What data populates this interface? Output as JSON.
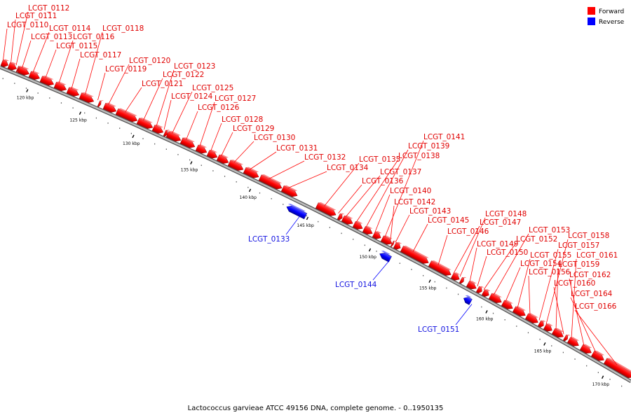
{
  "caption": "Lactococcus garvieae ATCC 49156 DNA, complete genome. - 0..1950135",
  "legend": [
    {
      "label": "Forward",
      "color": "#ff0000"
    },
    {
      "label": "Reverse",
      "color": "#0000ff"
    }
  ],
  "colors": {
    "forward": "#ff0000",
    "reverse": "#0000ff",
    "forward_label": "#e00000",
    "reverse_label": "#1010e0",
    "backbone": "#8c8c8c"
  },
  "ticks": [
    "120 kbp",
    "125 kbp",
    "130 kbp",
    "135 kbp",
    "140 kbp",
    "145 kbp",
    "150 kbp",
    "155 kbp",
    "160 kbp",
    "165 kbp",
    "170 kbp"
  ],
  "genes": [
    {
      "id": "LCGT_0110",
      "strand": "forward"
    },
    {
      "id": "LCGT_0111",
      "strand": "forward"
    },
    {
      "id": "LCGT_0112",
      "strand": "forward"
    },
    {
      "id": "LCGT_0113",
      "strand": "forward"
    },
    {
      "id": "LCGT_0114",
      "strand": "forward"
    },
    {
      "id": "LCGT_0115",
      "strand": "forward"
    },
    {
      "id": "LCGT_0116",
      "strand": "forward"
    },
    {
      "id": "LCGT_0117",
      "strand": "forward"
    },
    {
      "id": "LCGT_0118",
      "strand": "forward"
    },
    {
      "id": "LCGT_0119",
      "strand": "forward"
    },
    {
      "id": "LCGT_0120",
      "strand": "forward"
    },
    {
      "id": "LCGT_0121",
      "strand": "forward"
    },
    {
      "id": "LCGT_0122",
      "strand": "forward"
    },
    {
      "id": "LCGT_0123",
      "strand": "forward"
    },
    {
      "id": "LCGT_0124",
      "strand": "forward"
    },
    {
      "id": "LCGT_0125",
      "strand": "forward"
    },
    {
      "id": "LCGT_0126",
      "strand": "forward"
    },
    {
      "id": "LCGT_0127",
      "strand": "forward"
    },
    {
      "id": "LCGT_0128",
      "strand": "forward"
    },
    {
      "id": "LCGT_0129",
      "strand": "forward"
    },
    {
      "id": "LCGT_0130",
      "strand": "forward"
    },
    {
      "id": "LCGT_0131",
      "strand": "forward"
    },
    {
      "id": "LCGT_0132",
      "strand": "forward"
    },
    {
      "id": "LCGT_0133",
      "strand": "reverse"
    },
    {
      "id": "LCGT_0134",
      "strand": "forward"
    },
    {
      "id": "LCGT_0135",
      "strand": "forward"
    },
    {
      "id": "LCGT_0136",
      "strand": "forward"
    },
    {
      "id": "LCGT_0137",
      "strand": "forward"
    },
    {
      "id": "LCGT_0138",
      "strand": "forward"
    },
    {
      "id": "LCGT_0139",
      "strand": "forward"
    },
    {
      "id": "LCGT_0140",
      "strand": "forward"
    },
    {
      "id": "LCGT_0141",
      "strand": "forward"
    },
    {
      "id": "LCGT_0142",
      "strand": "forward"
    },
    {
      "id": "LCGT_0143",
      "strand": "forward"
    },
    {
      "id": "LCGT_0144",
      "strand": "reverse"
    },
    {
      "id": "LCGT_0145",
      "strand": "forward"
    },
    {
      "id": "LCGT_0146",
      "strand": "forward"
    },
    {
      "id": "LCGT_0147",
      "strand": "forward"
    },
    {
      "id": "LCGT_0148",
      "strand": "forward"
    },
    {
      "id": "LCGT_0149",
      "strand": "forward"
    },
    {
      "id": "LCGT_0150",
      "strand": "forward"
    },
    {
      "id": "LCGT_0151",
      "strand": "reverse"
    },
    {
      "id": "LCGT_0152",
      "strand": "forward"
    },
    {
      "id": "LCGT_0153",
      "strand": "forward"
    },
    {
      "id": "LCGT_0154",
      "strand": "forward"
    },
    {
      "id": "LCGT_0155",
      "strand": "forward"
    },
    {
      "id": "LCGT_0156",
      "strand": "forward"
    },
    {
      "id": "LCGT_0157",
      "strand": "forward"
    },
    {
      "id": "LCGT_0158",
      "strand": "forward"
    },
    {
      "id": "LCGT_0159",
      "strand": "forward"
    },
    {
      "id": "LCGT_0160",
      "strand": "forward"
    },
    {
      "id": "LCGT_0161",
      "strand": "forward"
    },
    {
      "id": "LCGT_0162",
      "strand": "forward"
    },
    {
      "id": "LCGT_0164",
      "strand": "forward"
    },
    {
      "id": "LCGT_0166",
      "strand": "forward"
    }
  ]
}
